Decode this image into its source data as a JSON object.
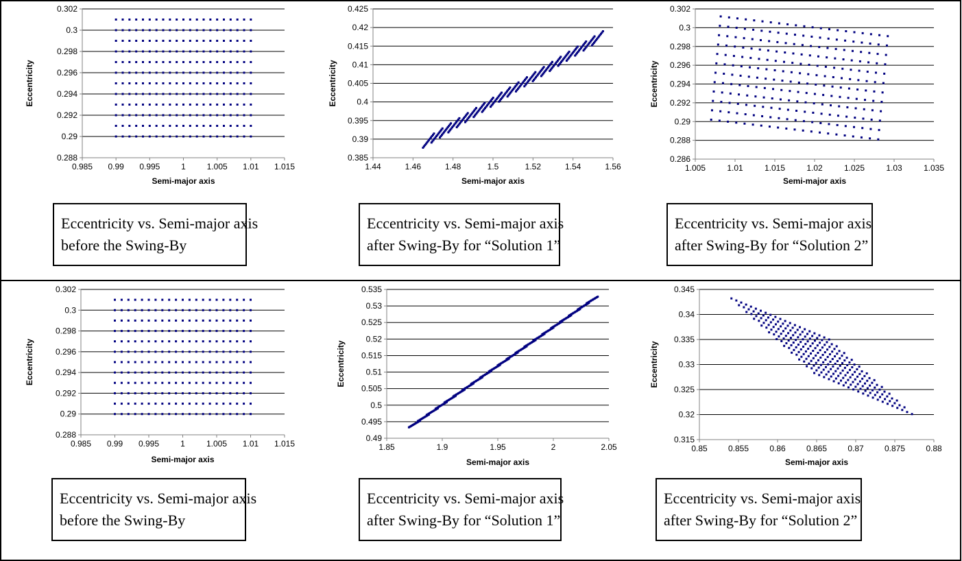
{
  "chart_data": [
    {
      "type": "scatter",
      "title": "",
      "xlabel": "Semi-major axis",
      "ylabel": "Eccentricity",
      "xlim": [
        0.985,
        1.015
      ],
      "ylim": [
        0.288,
        0.302
      ],
      "xticks": [
        "0.985",
        "0.99",
        "0.995",
        "1",
        "1.005",
        "1.01",
        "1.015"
      ],
      "yticks": [
        "0.288",
        "0.29",
        "0.292",
        "0.294",
        "0.296",
        "0.298",
        "0.3",
        "0.302"
      ],
      "grid": "horizontal",
      "marker_color": "#000080",
      "points": {
        "kind": "grid",
        "x_start": 0.99,
        "x_end": 1.01,
        "x_count": 21,
        "y_start": 0.29,
        "y_end": 0.301,
        "y_count": 12
      },
      "caption": [
        "Eccentricity vs. Semi-major axis",
        "before the Swing-By"
      ]
    },
    {
      "type": "scatter",
      "title": "",
      "xlabel": "Semi-major axis",
      "ylabel": "Eccentricity",
      "xlim": [
        1.44,
        1.56
      ],
      "ylim": [
        0.385,
        0.425
      ],
      "xticks": [
        "1.44",
        "1.46",
        "1.48",
        "1.5",
        "1.52",
        "1.54",
        "1.56"
      ],
      "yticks": [
        "0.385",
        "0.39",
        "0.395",
        "0.4",
        "0.405",
        "0.41",
        "0.415",
        "0.42",
        "0.425"
      ],
      "grid": "horizontal",
      "marker_color": "#000080",
      "points": {
        "kind": "parallelogram",
        "origin": [
          1.465,
          0.3877
        ],
        "u": [
          0.0845,
          0.0275
        ],
        "v": [
          0.0055,
          0.0038
        ],
        "nu": 21,
        "nv": 12
      },
      "caption": [
        "Eccentricity vs. Semi-major axis",
        "after Swing-By for “Solution 1”"
      ]
    },
    {
      "type": "scatter",
      "title": "",
      "xlabel": "Semi-major axis",
      "ylabel": "Eccentricity",
      "xlim": [
        1.005,
        1.035
      ],
      "ylim": [
        0.286,
        0.302
      ],
      "xticks": [
        "1.005",
        "1.01",
        "1.015",
        "1.02",
        "1.025",
        "1.03",
        "1.035"
      ],
      "yticks": [
        "0.286",
        "0.288",
        "0.29",
        "0.292",
        "0.294",
        "0.296",
        "0.298",
        "0.3",
        "0.302"
      ],
      "grid": "horizontal",
      "marker_color": "#000080",
      "points": {
        "kind": "parallelogram",
        "origin": [
          1.007,
          0.2902
        ],
        "u": [
          0.021,
          -0.0021
        ],
        "v": [
          0.0012,
          0.011
        ],
        "nu": 21,
        "nv": 12
      },
      "caption": [
        "Eccentricity vs. Semi-major axis",
        "after Swing-By for “Solution 2”"
      ]
    },
    {
      "type": "scatter",
      "title": "",
      "xlabel": "Semi-major axis",
      "ylabel": "Eccentricity",
      "xlim": [
        0.985,
        1.015
      ],
      "ylim": [
        0.288,
        0.302
      ],
      "xticks": [
        "0.985",
        "0.99",
        "0.995",
        "1",
        "1.005",
        "1.01",
        "1.015"
      ],
      "yticks": [
        "0.288",
        "0.29",
        "0.292",
        "0.294",
        "0.296",
        "0.298",
        "0.3",
        "0.302"
      ],
      "grid": "horizontal",
      "marker_color": "#000080",
      "points": {
        "kind": "grid",
        "x_start": 0.99,
        "x_end": 1.01,
        "x_count": 21,
        "y_start": 0.29,
        "y_end": 0.301,
        "y_count": 12
      },
      "caption": [
        "Eccentricity vs. Semi-major axis",
        "before the Swing-By"
      ]
    },
    {
      "type": "scatter",
      "title": "",
      "xlabel": "Semi-major axis",
      "ylabel": "Eccentricity",
      "xlim": [
        1.85,
        2.05
      ],
      "ylim": [
        0.49,
        0.535
      ],
      "xticks": [
        "1.85",
        "1.9",
        "1.95",
        "2",
        "2.05"
      ],
      "yticks": [
        "0.49",
        "0.495",
        "0.5",
        "0.505",
        "0.51",
        "0.515",
        "0.52",
        "0.525",
        "0.53",
        "0.535"
      ],
      "grid": "horizontal",
      "marker_color": "#000080",
      "points": {
        "kind": "parallelogram",
        "origin": [
          1.87,
          0.4933
        ],
        "u": [
          0.16,
          0.0375
        ],
        "v": [
          0.01,
          0.002
        ],
        "nu": 21,
        "nv": 12
      },
      "caption": [
        "Eccentricity vs. Semi-major axis",
        "after Swing-By for “Solution 1”"
      ]
    },
    {
      "type": "scatter",
      "title": "",
      "xlabel": "Semi-major axis",
      "ylabel": "Eccentricity",
      "xlim": [
        0.85,
        0.88
      ],
      "ylim": [
        0.315,
        0.345
      ],
      "xticks": [
        "0.85",
        "0.855",
        "0.86",
        "0.865",
        "0.87",
        "0.875",
        "0.88"
      ],
      "yticks": [
        "0.315",
        "0.32",
        "0.325",
        "0.33",
        "0.335",
        "0.34",
        "0.345"
      ],
      "grid": "horizontal",
      "marker_color": "#000080",
      "points": {
        "kind": "parallelogram",
        "origin": [
          0.8541,
          0.3432
        ],
        "u": [
          0.0125,
          -0.0082
        ],
        "v": [
          0.0106,
          -0.0149
        ],
        "nu": 21,
        "nv": 12
      },
      "caption": [
        "Eccentricity vs. Semi-major axis",
        "after Swing-By for “Solution 2”"
      ]
    }
  ]
}
